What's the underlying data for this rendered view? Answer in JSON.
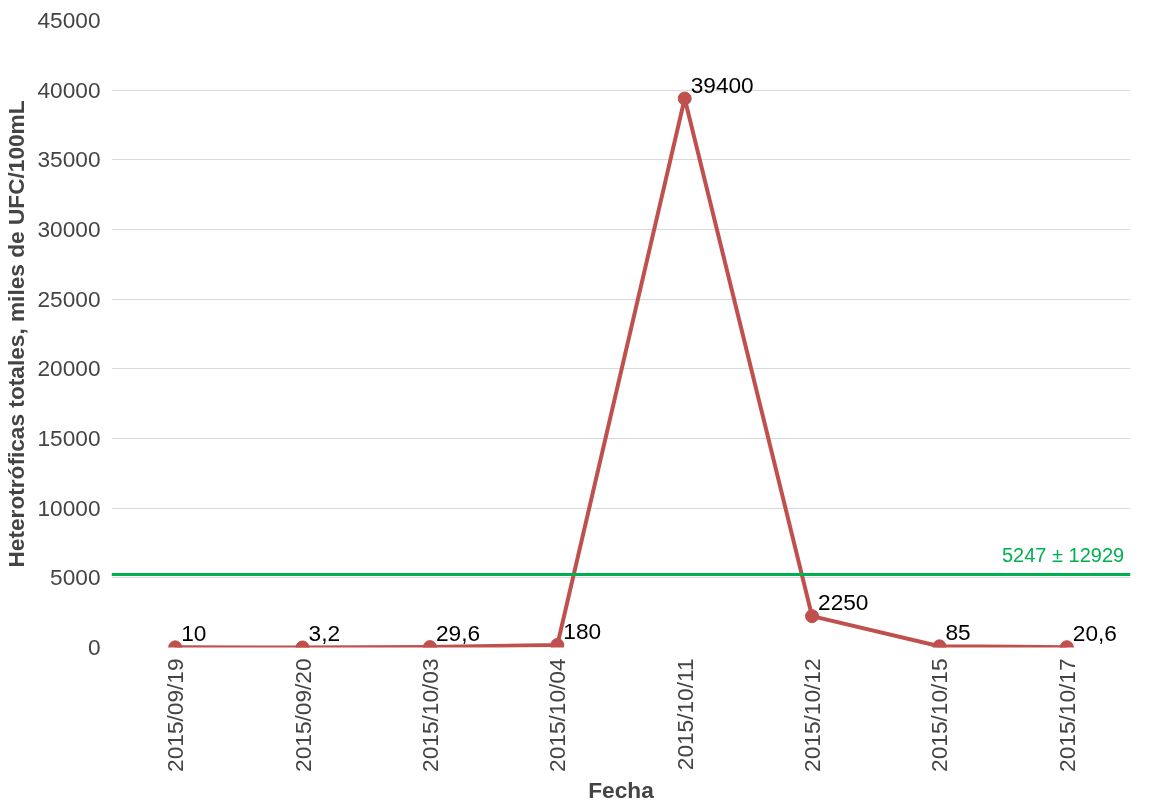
{
  "chart_data": {
    "type": "line",
    "xlabel": "Fecha",
    "ylabel": "Heterotróficas totales, miles de UFC/100mL",
    "categories": [
      "2015/09/19",
      "2015/09/20",
      "2015/10/03",
      "2015/10/04",
      "2015/10/11",
      "2015/10/12",
      "2015/10/15",
      "2015/10/17"
    ],
    "series": [
      {
        "color": "#c0504d",
        "values": [
          10,
          3.2,
          29.6,
          180,
          39400,
          2250,
          85,
          20.6
        ],
        "value_labels": [
          "10",
          "3,2",
          "29,6",
          "180",
          "39400",
          "2250",
          "85",
          "20,6"
        ]
      }
    ],
    "ylim": [
      0,
      45000
    ],
    "yticks": [
      0,
      5000,
      10000,
      15000,
      20000,
      25000,
      30000,
      35000,
      40000,
      45000
    ],
    "grid": "y",
    "marker": "circle",
    "line_style": "solid",
    "ref_lines": [
      {
        "axis": "y",
        "value": 5247,
        "label": "5247 ± 12929",
        "color": "#00b050"
      }
    ]
  }
}
